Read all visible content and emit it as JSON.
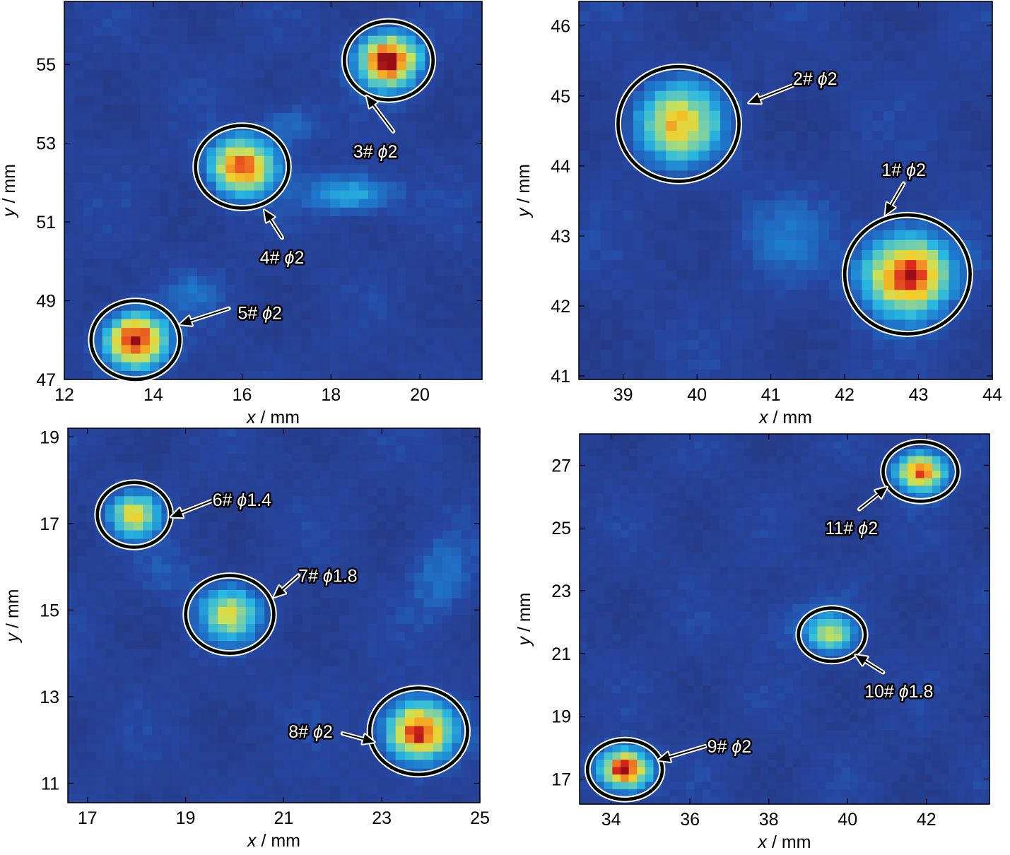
{
  "chart_data": [
    {
      "type": "heatmap",
      "panel": "top-left",
      "xlabel_var": "x",
      "xlabel_unit": " / mm",
      "ylabel_var": "y",
      "ylabel_unit": " / mm",
      "xlim": [
        12,
        21.4
      ],
      "ylim": [
        47,
        56.6
      ],
      "xticks": [
        12,
        14,
        16,
        18,
        20
      ],
      "yticks": [
        47,
        49,
        51,
        53,
        55
      ],
      "defects": [
        {
          "id": "3#",
          "size": "2",
          "x": 19.3,
          "y": 55.1,
          "radius": 1.0,
          "peak": 1.0,
          "label": {
            "x": 19.0,
            "y": 52.8
          },
          "arrow_from": {
            "x": 19.4,
            "y": 53.3
          },
          "arrow_to": {
            "x": 18.8,
            "y": 54.2
          }
        },
        {
          "id": "4#",
          "size": "2",
          "x": 16.0,
          "y": 52.4,
          "radius": 1.05,
          "peak": 0.9,
          "label": {
            "x": 16.9,
            "y": 50.1
          },
          "arrow_from": {
            "x": 16.9,
            "y": 50.6
          },
          "arrow_to": {
            "x": 16.5,
            "y": 51.3
          }
        },
        {
          "id": "5#",
          "size": "2",
          "x": 13.6,
          "y": 48.0,
          "radius": 1.0,
          "peak": 1.0,
          "label": {
            "x": 16.4,
            "y": 48.7
          },
          "arrow_from": {
            "x": 15.7,
            "y": 48.8
          },
          "arrow_to": {
            "x": 14.6,
            "y": 48.4
          }
        }
      ],
      "streaks": [
        {
          "x": 18.5,
          "y": 51.7,
          "sx": 0.7,
          "sy": 0.35,
          "amp": 0.28
        },
        {
          "x": 17.1,
          "y": 53.5,
          "sx": 0.45,
          "sy": 0.4,
          "amp": 0.15
        },
        {
          "x": 14.9,
          "y": 49.2,
          "sx": 0.45,
          "sy": 0.35,
          "amp": 0.12
        }
      ]
    },
    {
      "type": "heatmap",
      "panel": "top-right",
      "xlabel_var": "x",
      "xlabel_unit": " / mm",
      "ylabel_var": "y",
      "ylabel_unit": " / mm",
      "xlim": [
        38.4,
        44
      ],
      "ylim": [
        40.95,
        46.35
      ],
      "xticks": [
        39,
        40,
        41,
        42,
        43,
        44
      ],
      "yticks": [
        41,
        42,
        43,
        44,
        45,
        46
      ],
      "defects": [
        {
          "id": "2#",
          "size": "2",
          "x": 39.75,
          "y": 44.6,
          "radius": 0.82,
          "peak": 0.72,
          "label": {
            "x": 41.6,
            "y": 45.25
          },
          "arrow_from": {
            "x": 41.3,
            "y": 45.15
          },
          "arrow_to": {
            "x": 40.7,
            "y": 44.9
          }
        },
        {
          "id": "1#",
          "size": "2",
          "x": 42.85,
          "y": 42.45,
          "radius": 0.85,
          "peak": 0.95,
          "label": {
            "x": 42.8,
            "y": 43.95
          },
          "arrow_from": {
            "x": 42.8,
            "y": 43.75
          },
          "arrow_to": {
            "x": 42.55,
            "y": 43.3
          }
        }
      ],
      "streaks": [
        {
          "x": 41.2,
          "y": 43.0,
          "sx": 0.45,
          "sy": 0.45,
          "amp": 0.12
        }
      ]
    },
    {
      "type": "heatmap",
      "panel": "bottom-left",
      "xlabel_var": "x",
      "xlabel_unit": " / mm",
      "ylabel_var": "y",
      "ylabel_unit": " / mm",
      "xlim": [
        16.6,
        25
      ],
      "ylim": [
        10.55,
        19.2
      ],
      "xticks": [
        17,
        19,
        21,
        23,
        25
      ],
      "yticks": [
        11,
        13,
        15,
        17,
        19
      ],
      "defects": [
        {
          "id": "6#",
          "size": "1.4",
          "x": 17.95,
          "y": 17.2,
          "radius": 0.75,
          "peak": 0.65,
          "label": {
            "x": 20.15,
            "y": 17.55
          },
          "arrow_from": {
            "x": 19.6,
            "y": 17.55
          },
          "arrow_to": {
            "x": 18.7,
            "y": 17.15
          }
        },
        {
          "id": "7#",
          "size": "1.8",
          "x": 19.9,
          "y": 14.9,
          "radius": 0.9,
          "peak": 0.62,
          "label": {
            "x": 21.9,
            "y": 15.8
          },
          "arrow_from": {
            "x": 21.3,
            "y": 15.8
          },
          "arrow_to": {
            "x": 20.8,
            "y": 15.3
          }
        },
        {
          "id": "8#",
          "size": "2",
          "x": 23.75,
          "y": 12.2,
          "radius": 1.0,
          "peak": 0.95,
          "label": {
            "x": 21.55,
            "y": 12.2
          },
          "arrow_from": {
            "x": 22.2,
            "y": 12.15
          },
          "arrow_to": {
            "x": 22.85,
            "y": 11.95
          }
        }
      ],
      "streaks": [
        {
          "x": 24.2,
          "y": 15.8,
          "sx": 0.45,
          "sy": 0.7,
          "amp": 0.14
        },
        {
          "x": 18.6,
          "y": 15.8,
          "sx": 0.45,
          "sy": 0.45,
          "amp": 0.08
        }
      ]
    },
    {
      "type": "heatmap",
      "panel": "bottom-right",
      "xlabel_var": "x",
      "xlabel_unit": " / mm",
      "ylabel_var": "y",
      "ylabel_unit": " / mm",
      "xlim": [
        33.2,
        43.6
      ],
      "ylim": [
        16.2,
        28.0
      ],
      "xticks": [
        34,
        36,
        38,
        40,
        42
      ],
      "yticks": [
        17,
        19,
        21,
        23,
        25,
        27
      ],
      "defects": [
        {
          "id": "11#",
          "size": "2",
          "x": 41.85,
          "y": 26.8,
          "radius": 0.95,
          "peak": 0.85,
          "label": {
            "x": 40.1,
            "y": 25.0
          },
          "arrow_from": {
            "x": 40.3,
            "y": 25.6
          },
          "arrow_to": {
            "x": 41.0,
            "y": 26.3
          }
        },
        {
          "id": "10#",
          "size": "1.8",
          "x": 39.6,
          "y": 21.6,
          "radius": 0.85,
          "peak": 0.55,
          "label": {
            "x": 41.3,
            "y": 19.8
          },
          "arrow_from": {
            "x": 40.9,
            "y": 20.4
          },
          "arrow_to": {
            "x": 40.2,
            "y": 20.95
          }
        },
        {
          "id": "9#",
          "size": "2",
          "x": 34.35,
          "y": 17.3,
          "radius": 0.95,
          "peak": 1.0,
          "label": {
            "x": 37.0,
            "y": 18.05
          },
          "arrow_from": {
            "x": 36.4,
            "y": 18.05
          },
          "arrow_to": {
            "x": 35.2,
            "y": 17.6
          }
        }
      ],
      "streaks": [
        {
          "x": 38.7,
          "y": 22.0,
          "sx": 0.8,
          "sy": 0.6,
          "amp": 0.1
        }
      ]
    }
  ]
}
